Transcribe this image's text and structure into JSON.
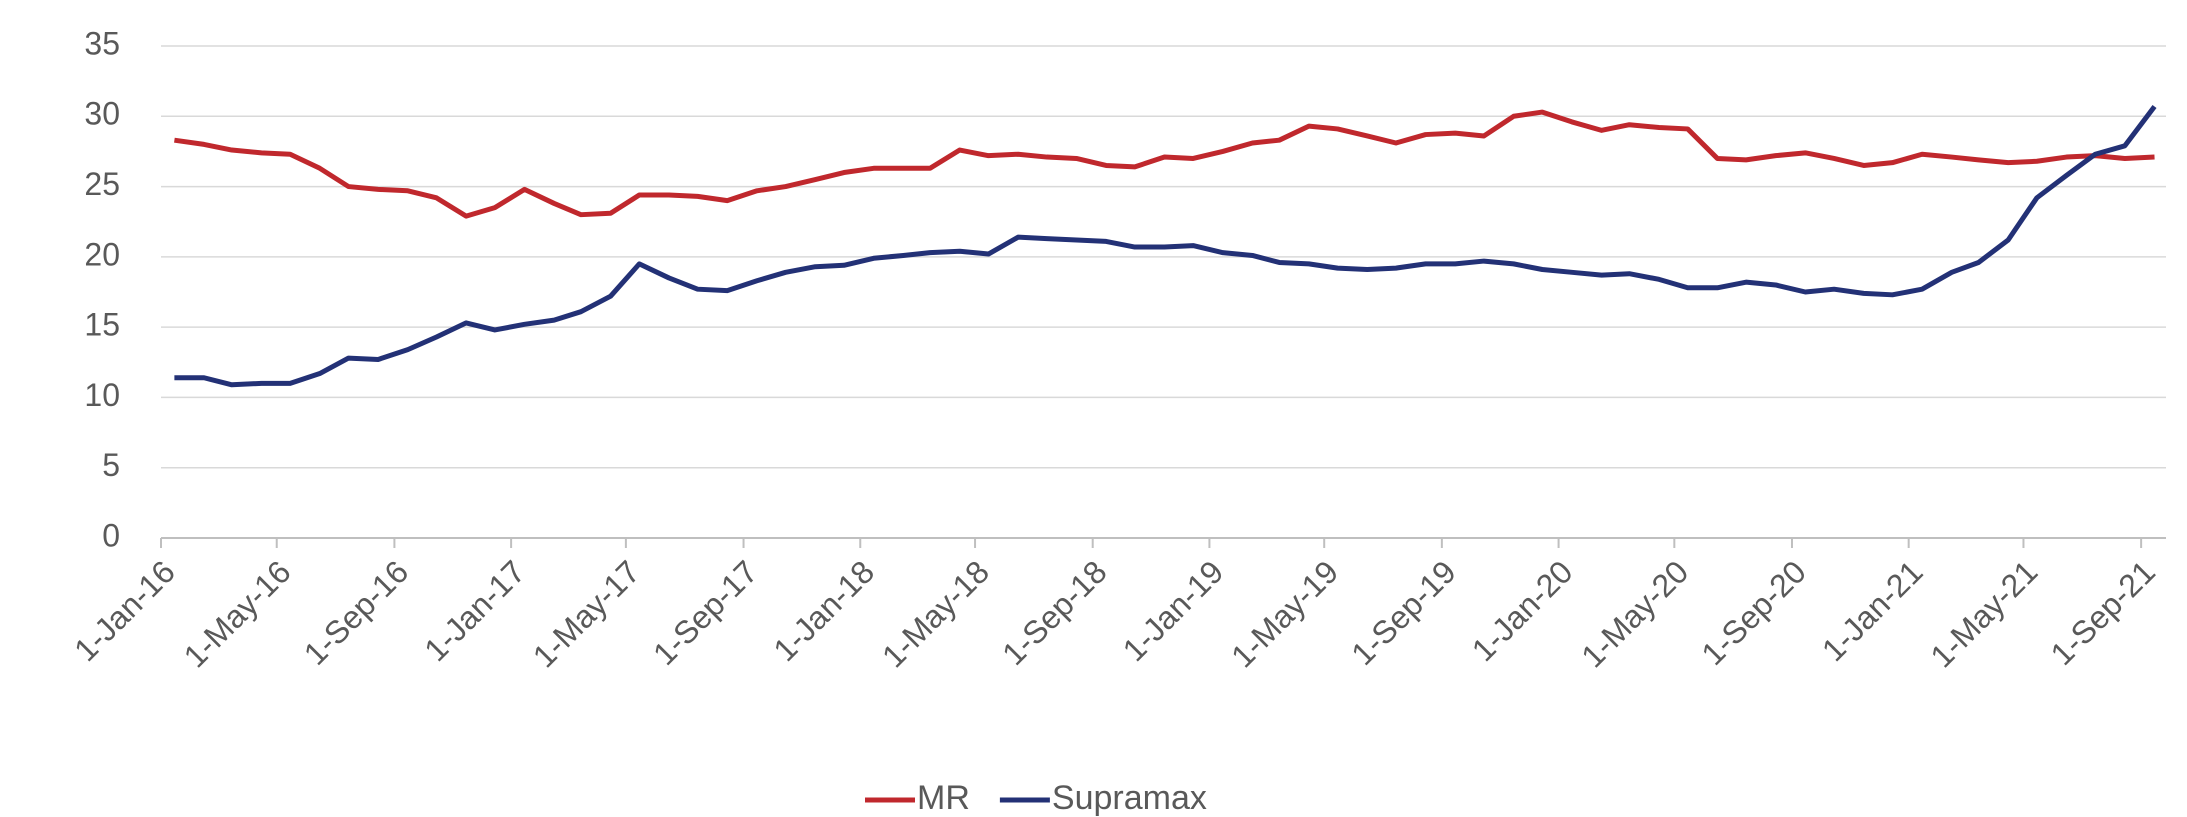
{
  "chart_data": {
    "type": "line",
    "x": [
      "2016-01-15",
      "2016-02-15",
      "2016-03-15",
      "2016-04-15",
      "2016-05-15",
      "2016-06-15",
      "2016-07-15",
      "2016-08-15",
      "2016-09-15",
      "2016-10-15",
      "2016-11-15",
      "2016-12-15",
      "2017-01-15",
      "2017-02-15",
      "2017-03-15",
      "2017-04-15",
      "2017-05-15",
      "2017-06-15",
      "2017-07-15",
      "2017-08-15",
      "2017-09-15",
      "2017-10-15",
      "2017-11-15",
      "2017-12-15",
      "2018-01-15",
      "2018-02-15",
      "2018-03-15",
      "2018-04-15",
      "2018-05-15",
      "2018-06-15",
      "2018-07-15",
      "2018-08-15",
      "2018-09-15",
      "2018-10-15",
      "2018-11-15",
      "2018-12-15",
      "2019-01-15",
      "2019-02-15",
      "2019-03-15",
      "2019-04-15",
      "2019-05-15",
      "2019-06-15",
      "2019-07-15",
      "2019-08-15",
      "2019-09-15",
      "2019-10-15",
      "2019-11-15",
      "2019-12-15",
      "2020-01-15",
      "2020-02-15",
      "2020-03-15",
      "2020-04-15",
      "2020-05-15",
      "2020-06-15",
      "2020-07-15",
      "2020-08-15",
      "2020-09-15",
      "2020-10-15",
      "2020-11-15",
      "2020-12-15",
      "2021-01-15",
      "2021-02-15",
      "2021-03-15",
      "2021-04-15",
      "2021-05-15",
      "2021-06-15",
      "2021-07-15",
      "2021-08-15",
      "2021-09-15"
    ],
    "series": [
      {
        "name": "MR",
        "color": "#c0282d",
        "values": [
          28.3,
          28,
          27.6,
          27.4,
          27.3,
          26.3,
          25,
          24.8,
          24.7,
          24.2,
          22.9,
          23.5,
          24.8,
          23.8,
          23,
          23.1,
          24.4,
          24.4,
          24.3,
          24,
          24.7,
          25,
          25.5,
          26,
          26.3,
          26.3,
          26.3,
          27.6,
          27.2,
          27.3,
          27.1,
          27,
          26.5,
          26.4,
          27.1,
          27,
          27.5,
          28.1,
          28.3,
          29.3,
          29.1,
          28.6,
          28.1,
          28.7,
          28.8,
          28.6,
          30,
          30.3,
          29.6,
          29,
          29.4,
          29.2,
          29.1,
          27,
          26.9,
          27.2,
          27.4,
          27,
          26.5,
          26.7,
          27.3,
          27.1,
          26.9,
          26.7,
          26.8,
          27.1,
          27.2,
          27,
          27.1
        ]
      },
      {
        "name": "Supramax",
        "color": "#233176",
        "values": [
          11.4,
          11.4,
          10.9,
          11,
          11,
          11.7,
          12.8,
          12.7,
          13.4,
          14.3,
          15.3,
          14.8,
          15.2,
          15.5,
          16.1,
          17.2,
          19.5,
          18.5,
          17.7,
          17.6,
          18.3,
          18.9,
          19.3,
          19.4,
          19.9,
          20.1,
          20.3,
          20.4,
          20.2,
          21.4,
          21.3,
          21.2,
          21.1,
          20.7,
          20.7,
          20.8,
          20.3,
          20.1,
          19.6,
          19.5,
          19.2,
          19.1,
          19.2,
          19.5,
          19.5,
          19.7,
          19.5,
          19.1,
          18.9,
          18.7,
          18.8,
          18.4,
          17.8,
          17.8,
          18.2,
          18,
          17.5,
          17.7,
          17.4,
          17.3,
          17.7,
          18.9,
          19.6,
          21.2,
          24.2,
          25.8,
          27.3,
          27.9,
          30.7
        ]
      }
    ],
    "xlim": [
      "2016-01-01",
      "2021-09-27"
    ],
    "xticks": [
      {
        "value": "2016-01-01",
        "label": "1-Jan-16"
      },
      {
        "value": "2016-05-01",
        "label": "1-May-16"
      },
      {
        "value": "2016-09-01",
        "label": "1-Sep-16"
      },
      {
        "value": "2017-01-01",
        "label": "1-Jan-17"
      },
      {
        "value": "2017-05-01",
        "label": "1-May-17"
      },
      {
        "value": "2017-09-01",
        "label": "1-Sep-17"
      },
      {
        "value": "2018-01-01",
        "label": "1-Jan-18"
      },
      {
        "value": "2018-05-01",
        "label": "1-May-18"
      },
      {
        "value": "2018-09-01",
        "label": "1-Sep-18"
      },
      {
        "value": "2019-01-01",
        "label": "1-Jan-19"
      },
      {
        "value": "2019-05-01",
        "label": "1-May-19"
      },
      {
        "value": "2019-09-01",
        "label": "1-Sep-19"
      },
      {
        "value": "2020-01-01",
        "label": "1-Jan-20"
      },
      {
        "value": "2020-05-01",
        "label": "1-May-20"
      },
      {
        "value": "2020-09-01",
        "label": "1-Sep-20"
      },
      {
        "value": "2021-01-01",
        "label": "1-Jan-21"
      },
      {
        "value": "2021-05-01",
        "label": "1-May-21"
      },
      {
        "value": "2021-09-01",
        "label": "1-Sep-21"
      }
    ],
    "ylim": [
      0,
      35
    ],
    "yticks": [
      0,
      5,
      10,
      15,
      20,
      25,
      30,
      35
    ],
    "grid": true,
    "legend": "bottom"
  }
}
